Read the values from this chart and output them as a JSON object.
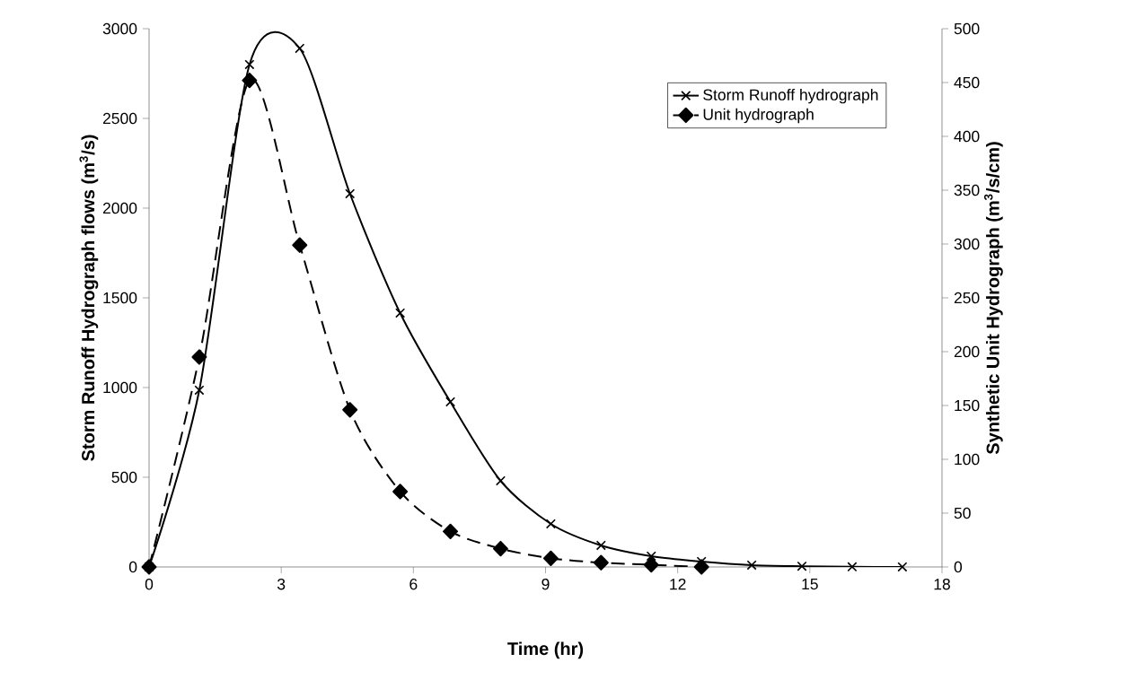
{
  "chart_data": {
    "type": "line",
    "xlabel": "Time (hr)",
    "ylabel": "Storm Runoff Hydrograph flows (m$^{3}$/s)",
    "y2label": "Synthetic Unit Hydrograph (m$^{3}$/s/cm)",
    "xlim": [
      0,
      18
    ],
    "xticks": [
      0,
      3,
      6,
      9,
      12,
      15,
      18
    ],
    "ylim": [
      0,
      3000
    ],
    "yticks": [
      0,
      500,
      1000,
      1500,
      2000,
      2500,
      3000
    ],
    "y2lim": [
      0,
      500
    ],
    "y2ticks": [
      0,
      50,
      100,
      150,
      200,
      250,
      300,
      350,
      400,
      450,
      500
    ],
    "legend": "top right",
    "grid": false,
    "series": [
      {
        "name": "Storm Runoff hydrograph",
        "color": "#000000",
        "marker": "cross",
        "line_style": "solid",
        "x": [
          0,
          1.14,
          2.28,
          3.42,
          4.56,
          5.7,
          6.84,
          7.98,
          9.12,
          10.26,
          11.4,
          12.54,
          13.68,
          14.82,
          15.96,
          17.1
        ],
        "values": [
          0,
          985,
          2800,
          2890,
          2080,
          1415,
          920,
          480,
          240,
          120,
          60,
          30,
          10,
          4,
          1,
          0
        ]
      },
      {
        "name": "Unit hydrograph",
        "color": "#000000",
        "marker": "diamond",
        "line_style": "dashed",
        "axis": "y2",
        "x": [
          0,
          1.14,
          2.28,
          3.42,
          4.56,
          5.7,
          6.84,
          7.98,
          9.12,
          10.26,
          11.4,
          12.54
        ],
        "values": [
          0,
          195,
          452,
          299,
          146,
          70,
          33,
          17,
          8,
          4,
          2,
          0
        ]
      }
    ]
  }
}
